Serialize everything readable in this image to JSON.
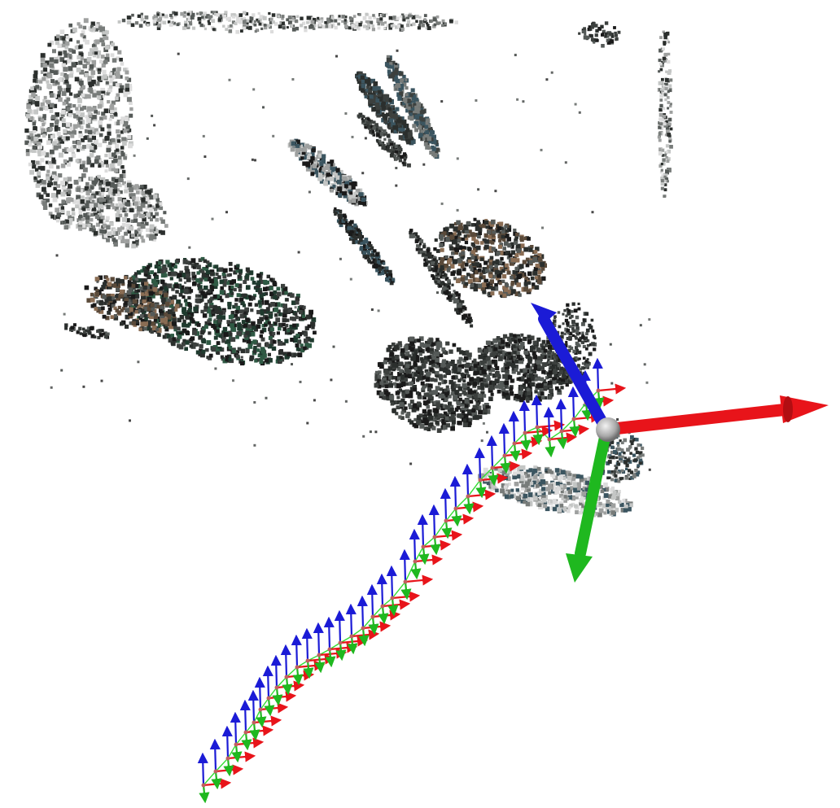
{
  "scene": {
    "description_visible_text": "",
    "background": "#ffffff",
    "axis_colors": {
      "x": "#e8141a",
      "y": "#1fb81f",
      "z": "#1b1bd6"
    },
    "trajectory_color": "#33dd33",
    "origin_marker_color": "#b8b8b8",
    "point_cloud_palette": [
      "#1a1a1a",
      "#2b2f2d",
      "#3c403e",
      "#555a58",
      "#787c7a",
      "#9ea09f",
      "#c4c6c5",
      "#dcdcdc",
      "#1f3a2e",
      "#2f5a44",
      "#5a4a3a",
      "#8a6d54",
      "#3b5560"
    ]
  }
}
